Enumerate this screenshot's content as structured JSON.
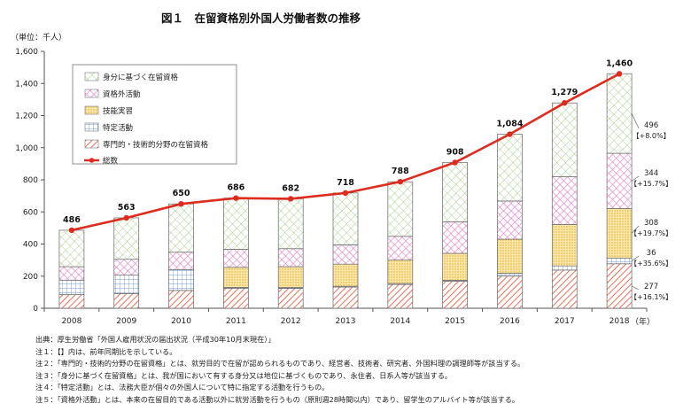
{
  "chart_data": {
    "type": "bar",
    "title": "図１　在留資格別外国人労働者数の推移",
    "unit_label": "（単位：千人）",
    "x_unit": "（年）",
    "categories": [
      "2008",
      "2009",
      "2010",
      "2011",
      "2012",
      "2013",
      "2014",
      "2015",
      "2016",
      "2017",
      "2018"
    ],
    "ylim": [
      0,
      1600
    ],
    "yticks": [
      0,
      200,
      400,
      600,
      800,
      1000,
      1200,
      1400,
      1600
    ],
    "ytick_labels": [
      "0",
      "200",
      "400",
      "600",
      "800",
      "1,000",
      "1,200",
      "1,400",
      "1,600"
    ],
    "grid": false,
    "legend_position": "top-left",
    "stacked": true,
    "series": [
      {
        "name": "専門的・技術的分野の在留資格",
        "pattern": "diagonal-hatch",
        "color": "#e8705a",
        "values": [
          85,
          92,
          111,
          125,
          124,
          132,
          148,
          168,
          200,
          238,
          277
        ]
      },
      {
        "name": "特定活動",
        "pattern": "grid",
        "color": "#6f9bd1",
        "values": [
          90,
          114,
          130,
          5,
          5,
          5,
          6,
          6,
          18,
          26,
          36
        ]
      },
      {
        "name": "技能実習",
        "pattern": "dots",
        "color": "#f2c040",
        "values": [
          0,
          0,
          0,
          125,
          130,
          138,
          146,
          168,
          212,
          258,
          308
        ]
      },
      {
        "name": "資格外活動",
        "pattern": "crosshatch",
        "color": "#e07cc8",
        "values": [
          84,
          99,
          108,
          112,
          112,
          120,
          148,
          196,
          238,
          297,
          344
        ]
      },
      {
        "name": "身分に基づく在留資格",
        "pattern": "diamond-lattice",
        "color": "#8fc46a",
        "values": [
          227,
          258,
          301,
          319,
          311,
          323,
          340,
          370,
          416,
          460,
          496
        ]
      }
    ],
    "line_series": {
      "name": "総数",
      "color": "#dd2c1f",
      "values": [
        486,
        563,
        650,
        686,
        682,
        718,
        788,
        908,
        1084,
        1279,
        1460
      ],
      "labels": [
        "486",
        "563",
        "650",
        "686",
        "682",
        "718",
        "788",
        "908",
        "1,084",
        "1,279",
        "1,460"
      ]
    },
    "annotations_2018": [
      {
        "value": "496",
        "change": "【+8.0%】"
      },
      {
        "value": "344",
        "change": "【+15.7%】"
      },
      {
        "value": "308",
        "change": "【+19.7%】"
      },
      {
        "value": "36",
        "change": "【+35.6%】"
      },
      {
        "value": "277",
        "change": "【+16.1%】"
      }
    ]
  },
  "notes": [
    "出典：厚生労働省「外国人雇用状況の届出状況（平成30年10月末現在）」",
    "注１：【】内は、前年同期比を示している。",
    "注２：「専門的・技術的分野の在留資格」とは、就労目的で在留が認められるものであり、経営者、技術者、研究者、外国料理の調理師等が該当する。",
    "注３：「身分に基づく在留資格」とは、我が国において有する身分又は地位に基づくものであり、永住者、日系人等が該当する。",
    "注４：「特定活動」とは、法務大臣が個々の外国人について特に指定する活動を行うもの。",
    "注５：「資格外活動」とは、本来の在留目的である活動以外に就労活動を行うもの（原則週28時間以内）であり、留学生のアルバイト等が該当する。"
  ]
}
